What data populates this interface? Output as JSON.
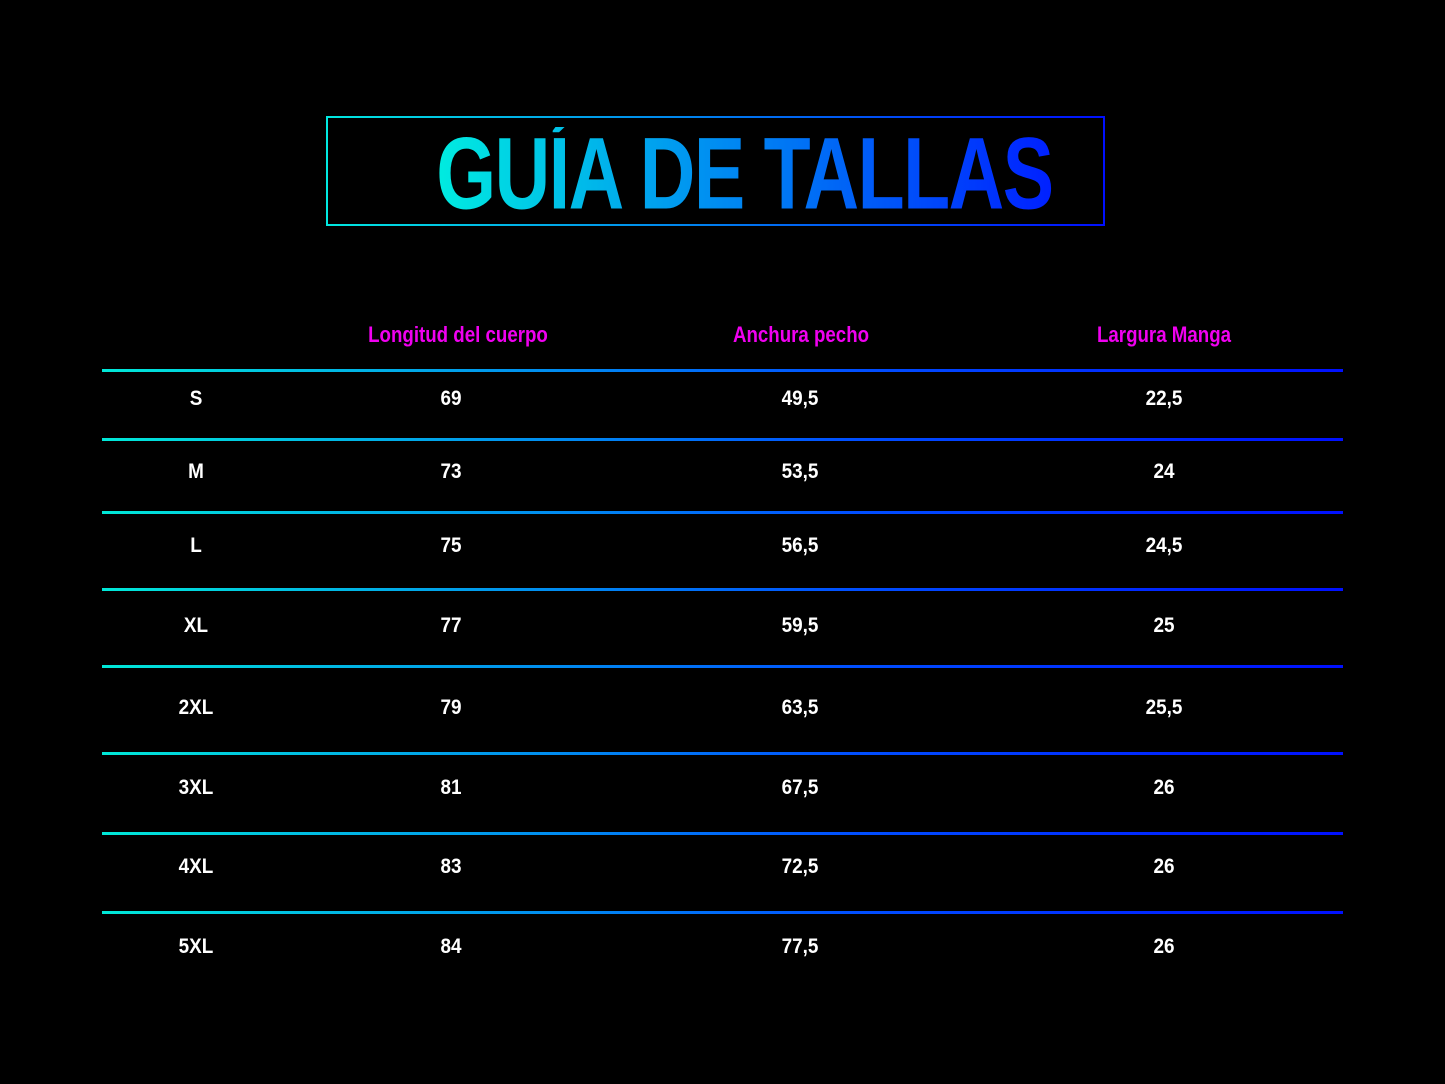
{
  "title": "GUÍA DE TALLAS",
  "colors": {
    "background": "#000000",
    "gradient_start": "#00e8e0",
    "gradient_end": "#0010ff",
    "header_text": "#f000f0",
    "cell_text": "#ffffff"
  },
  "table": {
    "headers": [
      "",
      "Longitud del cuerpo",
      "Anchura pecho",
      "Largura Manga"
    ],
    "rows": [
      [
        "S",
        "69",
        "49,5",
        "22,5"
      ],
      [
        "M",
        "73",
        "53,5",
        "24"
      ],
      [
        "L",
        "75",
        "56,5",
        "24,5"
      ],
      [
        "XL",
        "77",
        "59,5",
        "25"
      ],
      [
        "2XL",
        "79",
        "63,5",
        "25,5"
      ],
      [
        "3XL",
        "81",
        "67,5",
        "26"
      ],
      [
        "4XL",
        "83",
        "72,5",
        "26"
      ],
      [
        "5XL",
        "84",
        "77,5",
        "26"
      ]
    ]
  }
}
